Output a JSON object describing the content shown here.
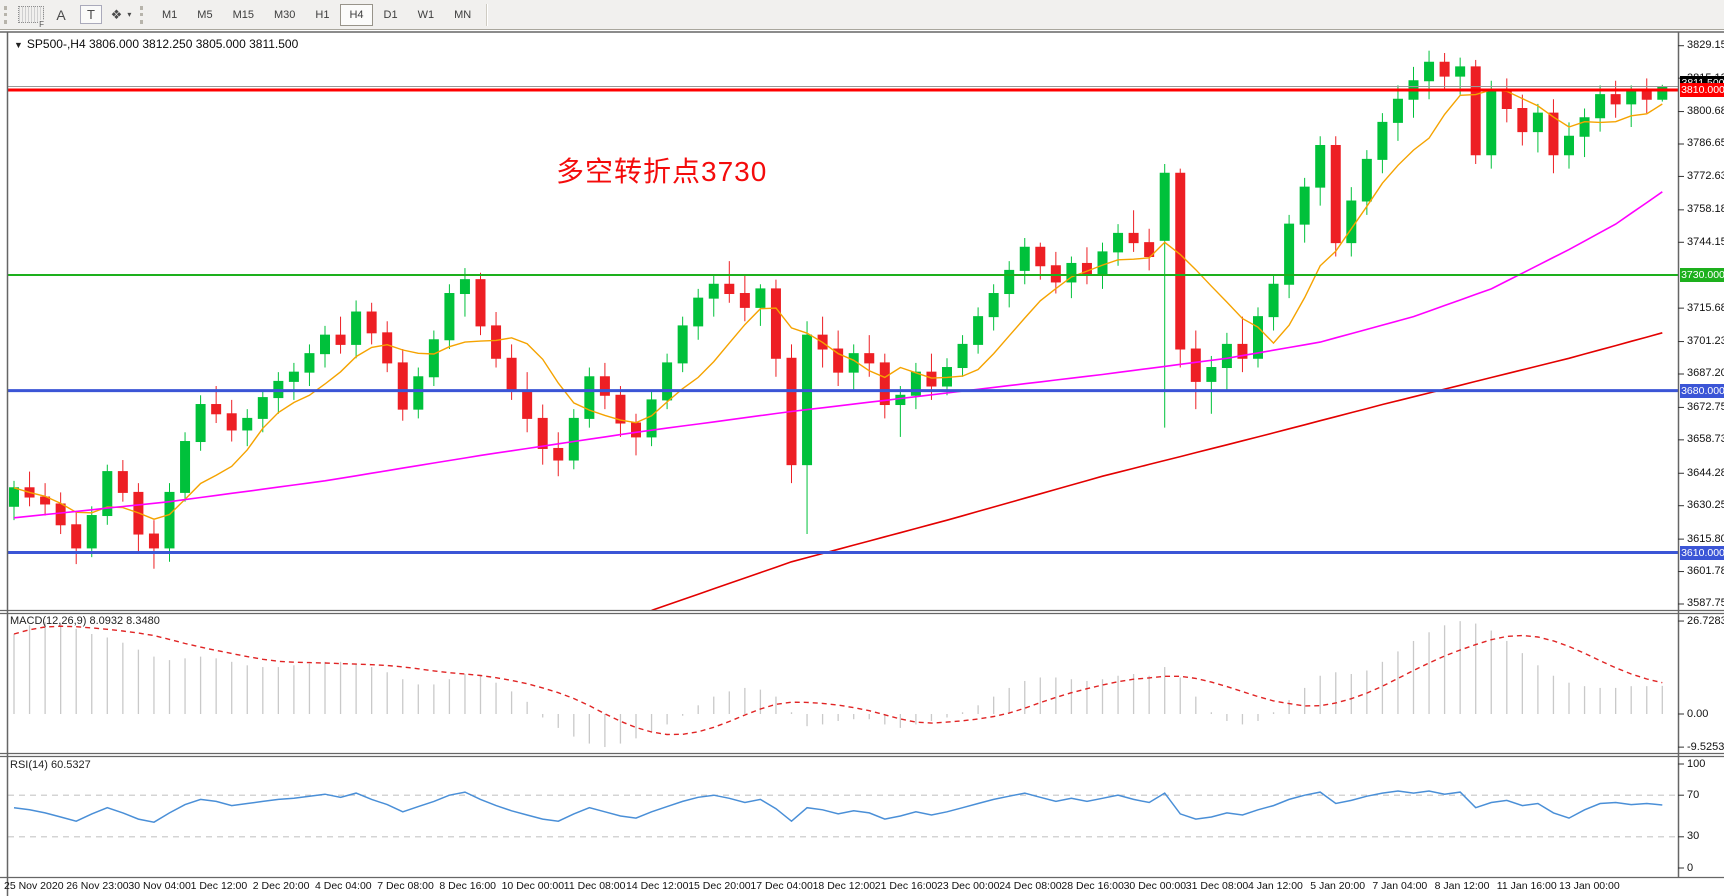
{
  "toolbar": {
    "left_tools": [
      {
        "name": "templates-grid",
        "label": "F"
      },
      {
        "name": "text-label-tool",
        "label": "A"
      },
      {
        "name": "text-tool",
        "label": "T"
      },
      {
        "name": "shapes-tool",
        "label": "❖",
        "caret": "▾"
      }
    ],
    "timeframes": [
      "M1",
      "M5",
      "M15",
      "M30",
      "H1",
      "H4",
      "D1",
      "W1",
      "MN"
    ],
    "active_timeframe": "H4"
  },
  "chart": {
    "symbol_line": "SP500-,H4  3806.000 3812.250 3805.000 3811.500",
    "dropdown_glyph": "▼",
    "annotation": {
      "text": "多空转折点3730",
      "color": "#f40b0b"
    }
  },
  "macd": {
    "label": "MACD(12,26,9) 8.0932 8.3480"
  },
  "rsi": {
    "label": "RSI(14) 60.5327"
  },
  "colors": {
    "up": "#00c13b",
    "down": "#ed1f24",
    "ma_orange": "#f5a300",
    "ma_magenta": "#ff00ff",
    "ma_red": "#e30000",
    "macd_hist": "#c9c9c9",
    "macd_signal": "#e02424",
    "rsi_line": "#4a8fd7",
    "rsi_dash": "#c6c6c6",
    "level_red": "#ff0000",
    "level_green": "#1db01d",
    "level_blue": "#3b55d6",
    "bid_line": "#9a9a9a",
    "bid_chip_bg": "#000000",
    "border": "#666666",
    "tick": "#333333"
  },
  "chart_data": {
    "type": "candlestick+indicators",
    "symbol": "SP500-",
    "timeframe": "H4",
    "ohlc_display": {
      "open": "3806.000",
      "high": "3812.250",
      "low": "3805.000",
      "close": "3811.500"
    },
    "price_axis_ticks": [
      {
        "v": 3829.155,
        "label": "3829.155"
      },
      {
        "v": 3815.13,
        "label": "3815.130"
      },
      {
        "v": 3800.68,
        "label": "3800.680"
      },
      {
        "v": 3786.655,
        "label": "3786.655"
      },
      {
        "v": 3772.63,
        "label": "3772.630"
      },
      {
        "v": 3758.18,
        "label": "3758.180"
      },
      {
        "v": 3744.155,
        "label": "3744.155"
      },
      {
        "v": 3715.68,
        "label": "3715.680"
      },
      {
        "v": 3701.23,
        "label": "3701.230"
      },
      {
        "v": 3687.205,
        "label": "3687.205"
      },
      {
        "v": 3672.755,
        "label": "3672.755"
      },
      {
        "v": 3658.73,
        "label": "3658.730"
      },
      {
        "v": 3644.28,
        "label": "3644.280"
      },
      {
        "v": 3630.255,
        "label": "3630.255"
      },
      {
        "v": 3615.805,
        "label": "3615.805"
      },
      {
        "v": 3601.78,
        "label": "3601.780"
      },
      {
        "v": 3587.755,
        "label": "3587.755"
      }
    ],
    "horizontal_levels": [
      {
        "price": 3810.0,
        "label": "3810.000",
        "color_key": "level_red",
        "width": 3
      },
      {
        "price": 3730.0,
        "label": "3730.000",
        "color_key": "level_green",
        "width": 2
      },
      {
        "price": 3680.0,
        "label": "3680.000",
        "color_key": "level_blue",
        "width": 3
      },
      {
        "price": 3610.0,
        "label": "3610.000",
        "color_key": "level_blue",
        "width": 3
      }
    ],
    "bid": {
      "price": 3811.5,
      "label": "3811.500"
    },
    "candles": [
      [
        3630,
        3641,
        3624,
        3638
      ],
      [
        3638,
        3645,
        3630,
        3634
      ],
      [
        3634,
        3640,
        3626,
        3631
      ],
      [
        3631,
        3636,
        3618,
        3622
      ],
      [
        3622,
        3628,
        3605,
        3612
      ],
      [
        3612,
        3630,
        3608,
        3626
      ],
      [
        3626,
        3648,
        3622,
        3645
      ],
      [
        3645,
        3650,
        3632,
        3636
      ],
      [
        3636,
        3640,
        3610,
        3618
      ],
      [
        3618,
        3624,
        3603,
        3612
      ],
      [
        3612,
        3640,
        3606,
        3636
      ],
      [
        3636,
        3662,
        3632,
        3658
      ],
      [
        3658,
        3678,
        3654,
        3674
      ],
      [
        3674,
        3682,
        3666,
        3670
      ],
      [
        3670,
        3676,
        3658,
        3663
      ],
      [
        3663,
        3672,
        3656,
        3668
      ],
      [
        3668,
        3680,
        3662,
        3677
      ],
      [
        3677,
        3688,
        3670,
        3684
      ],
      [
        3684,
        3692,
        3676,
        3688
      ],
      [
        3688,
        3700,
        3682,
        3696
      ],
      [
        3696,
        3708,
        3690,
        3704
      ],
      [
        3704,
        3712,
        3696,
        3700
      ],
      [
        3700,
        3719,
        3694,
        3714
      ],
      [
        3714,
        3718,
        3700,
        3705
      ],
      [
        3705,
        3710,
        3688,
        3692
      ],
      [
        3692,
        3698,
        3667,
        3672
      ],
      [
        3672,
        3690,
        3668,
        3686
      ],
      [
        3686,
        3706,
        3682,
        3702
      ],
      [
        3702,
        3726,
        3698,
        3722
      ],
      [
        3722,
        3733,
        3712,
        3728
      ],
      [
        3728,
        3731,
        3704,
        3708
      ],
      [
        3708,
        3714,
        3690,
        3694
      ],
      [
        3694,
        3700,
        3676,
        3680
      ],
      [
        3680,
        3688,
        3662,
        3668
      ],
      [
        3668,
        3674,
        3648,
        3655
      ],
      [
        3655,
        3662,
        3643,
        3650
      ],
      [
        3650,
        3672,
        3646,
        3668
      ],
      [
        3668,
        3690,
        3664,
        3686
      ],
      [
        3686,
        3692,
        3672,
        3678
      ],
      [
        3678,
        3682,
        3660,
        3666
      ],
      [
        3666,
        3670,
        3652,
        3660
      ],
      [
        3660,
        3680,
        3656,
        3676
      ],
      [
        3676,
        3696,
        3672,
        3692
      ],
      [
        3692,
        3712,
        3688,
        3708
      ],
      [
        3708,
        3724,
        3702,
        3720
      ],
      [
        3720,
        3730,
        3712,
        3726
      ],
      [
        3726,
        3736,
        3718,
        3722
      ],
      [
        3722,
        3730,
        3710,
        3716
      ],
      [
        3716,
        3726,
        3708,
        3724
      ],
      [
        3724,
        3728,
        3686,
        3694
      ],
      [
        3694,
        3700,
        3640,
        3648
      ],
      [
        3648,
        3710,
        3618,
        3704
      ],
      [
        3704,
        3712,
        3690,
        3698
      ],
      [
        3698,
        3706,
        3682,
        3688
      ],
      [
        3688,
        3700,
        3680,
        3696
      ],
      [
        3696,
        3704,
        3686,
        3692
      ],
      [
        3692,
        3696,
        3668,
        3674
      ],
      [
        3674,
        3682,
        3660,
        3678
      ],
      [
        3678,
        3692,
        3672,
        3688
      ],
      [
        3688,
        3696,
        3676,
        3682
      ],
      [
        3682,
        3694,
        3678,
        3690
      ],
      [
        3690,
        3704,
        3686,
        3700
      ],
      [
        3700,
        3716,
        3696,
        3712
      ],
      [
        3712,
        3726,
        3706,
        3722
      ],
      [
        3722,
        3736,
        3716,
        3732
      ],
      [
        3732,
        3746,
        3726,
        3742
      ],
      [
        3742,
        3744,
        3728,
        3734
      ],
      [
        3734,
        3740,
        3722,
        3727
      ],
      [
        3727,
        3738,
        3720,
        3735
      ],
      [
        3735,
        3742,
        3726,
        3730
      ],
      [
        3730,
        3744,
        3724,
        3740
      ],
      [
        3740,
        3752,
        3734,
        3748
      ],
      [
        3748,
        3758,
        3740,
        3744
      ],
      [
        3744,
        3750,
        3732,
        3738
      ],
      [
        3745,
        3778,
        3664,
        3774
      ],
      [
        3774,
        3776,
        3690,
        3698
      ],
      [
        3698,
        3706,
        3672,
        3684
      ],
      [
        3684,
        3695,
        3670,
        3690
      ],
      [
        3690,
        3705,
        3680,
        3700
      ],
      [
        3700,
        3712,
        3688,
        3694
      ],
      [
        3694,
        3716,
        3690,
        3712
      ],
      [
        3712,
        3730,
        3706,
        3726
      ],
      [
        3726,
        3756,
        3720,
        3752
      ],
      [
        3752,
        3772,
        3744,
        3768
      ],
      [
        3768,
        3790,
        3760,
        3786
      ],
      [
        3786,
        3790,
        3738,
        3744
      ],
      [
        3744,
        3768,
        3738,
        3762
      ],
      [
        3762,
        3784,
        3756,
        3780
      ],
      [
        3780,
        3800,
        3774,
        3796
      ],
      [
        3796,
        3812,
        3788,
        3806
      ],
      [
        3806,
        3820,
        3798,
        3814
      ],
      [
        3814,
        3827,
        3806,
        3822
      ],
      [
        3822,
        3826,
        3810,
        3816
      ],
      [
        3816,
        3824,
        3808,
        3820
      ],
      [
        3820,
        3823,
        3778,
        3782
      ],
      [
        3782,
        3814,
        3776,
        3810
      ],
      [
        3810,
        3815,
        3796,
        3802
      ],
      [
        3802,
        3808,
        3786,
        3792
      ],
      [
        3792,
        3804,
        3783,
        3800
      ],
      [
        3800,
        3806,
        3774,
        3782
      ],
      [
        3782,
        3796,
        3776,
        3790
      ],
      [
        3790,
        3802,
        3781,
        3798
      ],
      [
        3798,
        3812,
        3792,
        3808
      ],
      [
        3808,
        3814,
        3798,
        3804
      ],
      [
        3804,
        3812,
        3794,
        3810
      ],
      [
        3810,
        3815,
        3800,
        3806
      ],
      [
        3806,
        3812.25,
        3805,
        3811.5
      ]
    ],
    "ma_magenta_points": [
      [
        0,
        3625
      ],
      [
        10,
        3632
      ],
      [
        20,
        3641
      ],
      [
        30,
        3652
      ],
      [
        40,
        3662
      ],
      [
        50,
        3671
      ],
      [
        60,
        3679
      ],
      [
        70,
        3687
      ],
      [
        78,
        3694
      ],
      [
        84,
        3701
      ],
      [
        90,
        3712
      ],
      [
        95,
        3724
      ],
      [
        100,
        3741
      ],
      [
        103,
        3752
      ],
      [
        106,
        3766
      ]
    ],
    "ma_red_points": [
      [
        41,
        3585
      ],
      [
        50,
        3606
      ],
      [
        60,
        3624
      ],
      [
        70,
        3643
      ],
      [
        80,
        3660
      ],
      [
        88,
        3674
      ],
      [
        94,
        3684
      ],
      [
        100,
        3694
      ],
      [
        106,
        3705
      ]
    ],
    "macd": {
      "params": "12,26,9",
      "value": 8.0932,
      "signal_value": 8.348,
      "ticks": [
        {
          "v": 26.7283,
          "label": "26.7283"
        },
        {
          "v": 0,
          "label": "0.00"
        },
        {
          "v": -9.5253,
          "label": "-9.5253"
        }
      ],
      "hist": [
        23,
        25.5,
        26.5,
        26,
        24.5,
        23,
        22,
        20.5,
        18.5,
        16.5,
        15.5,
        16,
        16.5,
        16,
        15,
        14,
        13.5,
        13.5,
        14,
        14.5,
        15,
        15,
        14.5,
        13.5,
        12,
        10,
        8.5,
        8.5,
        10,
        11.5,
        11,
        9,
        6.5,
        3.5,
        -1,
        -4,
        -6.5,
        -8.5,
        -9.5,
        -8.5,
        -7,
        -5,
        -3,
        -0.5,
        2.5,
        5,
        6.5,
        7.5,
        7,
        5,
        0.5,
        -3.5,
        -3,
        -2,
        -1.5,
        -1.5,
        -3,
        -4,
        -3,
        -2,
        -1,
        0.5,
        2.5,
        5,
        7.5,
        9.5,
        10.5,
        10.5,
        10,
        9.5,
        10,
        11,
        11.5,
        11,
        13.5,
        10.5,
        5,
        0.5,
        -2,
        -3,
        -2,
        0.5,
        4,
        7.5,
        11,
        12,
        11.5,
        12.5,
        15,
        18,
        21,
        23.5,
        25.5,
        26.7,
        26,
        24,
        21,
        17.5,
        14,
        11,
        9,
        8,
        7.5,
        7.5,
        8,
        8,
        8.09
      ]
    },
    "rsi": {
      "period": 14,
      "value": 60.5327,
      "ticks": [
        {
          "v": 100,
          "label": "100"
        },
        {
          "v": 70,
          "label": "70"
        },
        {
          "v": 30,
          "label": "30"
        },
        {
          "v": 0,
          "label": "0"
        }
      ],
      "dashed_levels": [
        70,
        30
      ],
      "values": [
        58,
        56,
        53,
        49,
        45,
        52,
        58,
        53,
        47,
        44,
        53,
        61,
        66,
        64,
        60,
        62,
        64,
        66,
        67,
        69,
        71,
        68,
        72,
        66,
        61,
        54,
        59,
        64,
        70,
        73,
        66,
        60,
        55,
        51,
        47,
        45,
        52,
        58,
        54,
        50,
        48,
        54,
        59,
        64,
        68,
        70,
        67,
        63,
        66,
        57,
        45,
        58,
        56,
        52,
        55,
        53,
        47,
        50,
        54,
        51,
        54,
        58,
        62,
        66,
        69,
        72,
        68,
        64,
        67,
        64,
        67,
        70,
        66,
        63,
        72,
        52,
        47,
        49,
        53,
        51,
        56,
        60,
        66,
        70,
        73,
        62,
        65,
        69,
        72,
        74,
        72,
        74,
        71,
        73,
        58,
        63,
        65,
        60,
        62,
        53,
        48,
        56,
        62,
        63,
        61,
        62,
        60.53
      ]
    },
    "time_labels": [
      "25 Nov 2020",
      "26 Nov 23:00",
      "30 Nov 04:00",
      "1 Dec 12:00",
      "2 Dec 20:00",
      "4 Dec 04:00",
      "7 Dec 08:00",
      "8 Dec 16:00",
      "10 Dec 00:00",
      "11 Dec 08:00",
      "14 Dec 12:00",
      "15 Dec 20:00",
      "17 Dec 04:00",
      "18 Dec 12:00",
      "21 Dec 16:00",
      "23 Dec 00:00",
      "24 Dec 08:00",
      "28 Dec 16:00",
      "30 Dec 00:00",
      "31 Dec 08:00",
      "4 Jan 12:00",
      "5 Jan 20:00",
      "7 Jan 04:00",
      "8 Jan 12:00",
      "11 Jan 16:00",
      "13 Jan 00:00"
    ]
  }
}
